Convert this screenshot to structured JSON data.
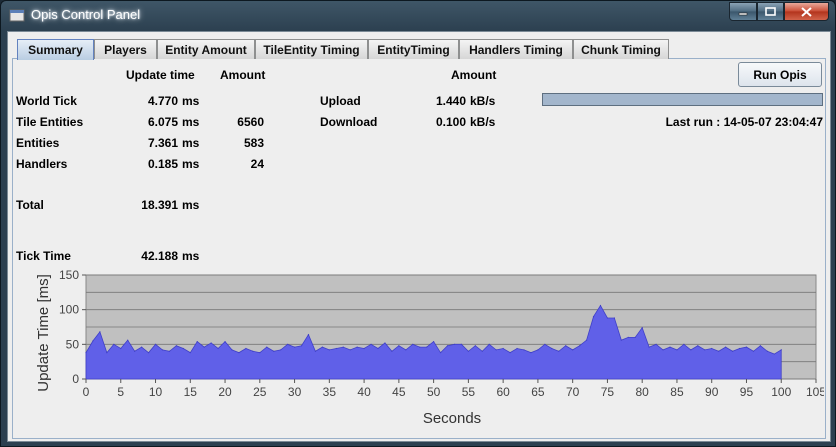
{
  "window": {
    "title": "Opis Control Panel"
  },
  "tabs": [
    {
      "label": "Summary",
      "active": true
    },
    {
      "label": "Players"
    },
    {
      "label": "Entity Amount"
    },
    {
      "label": "TileEntity Timing"
    },
    {
      "label": "EntityTiming"
    },
    {
      "label": "Handlers Timing"
    },
    {
      "label": "Chunk Timing"
    }
  ],
  "summary": {
    "col_update_time": "Update time",
    "col_amount": "Amount",
    "rows": [
      {
        "label": "World Tick",
        "value": "4.770",
        "unit": "ms",
        "amount": ""
      },
      {
        "label": "Tile Entities",
        "value": "6.075",
        "unit": "ms",
        "amount": "6560"
      },
      {
        "label": "Entities",
        "value": "7.361",
        "unit": "ms",
        "amount": "583"
      },
      {
        "label": "Handlers",
        "value": "0.185",
        "unit": "ms",
        "amount": "24"
      }
    ],
    "total": {
      "label": "Total",
      "value": "18.391",
      "unit": "ms"
    },
    "tick": {
      "label": "Tick Time",
      "value": "42.188",
      "unit": "ms"
    }
  },
  "network": {
    "col_amount": "Amount",
    "upload": {
      "label": "Upload",
      "value": "1.440",
      "unit": "kB/s"
    },
    "download": {
      "label": "Download",
      "value": "0.100",
      "unit": "kB/s"
    }
  },
  "run": {
    "button_label": "Run Opis",
    "progress": 1.0,
    "last_run": "Last run : 14-05-07 23:04:47"
  },
  "chart_data": {
    "type": "area",
    "xlabel": "Seconds",
    "ylabel": "Update Time [ms]",
    "xlim": [
      0,
      105
    ],
    "ylim": [
      0,
      150
    ],
    "xticks": [
      0,
      5,
      10,
      15,
      20,
      25,
      30,
      35,
      40,
      45,
      50,
      55,
      60,
      65,
      70,
      75,
      80,
      85,
      90,
      95,
      100,
      105
    ],
    "yticks": [
      0,
      50,
      100,
      150
    ],
    "color": "#6060e8",
    "series": [
      {
        "x": [
          0,
          1,
          2,
          3,
          4,
          5,
          6,
          7,
          8,
          9,
          10,
          11,
          12,
          13,
          14,
          15,
          16,
          17,
          18,
          19,
          20,
          21,
          22,
          23,
          24,
          25,
          26,
          27,
          28,
          29,
          30,
          31,
          32,
          33,
          34,
          35,
          36,
          37,
          38,
          39,
          40,
          41,
          42,
          43,
          44,
          45,
          46,
          47,
          48,
          49,
          50,
          51,
          52,
          53,
          54,
          55,
          56,
          57,
          58,
          59,
          60,
          61,
          62,
          63,
          64,
          65,
          66,
          67,
          68,
          69,
          70,
          71,
          72,
          73,
          74,
          75,
          76,
          77,
          78,
          79,
          80,
          81,
          82,
          83,
          84,
          85,
          86,
          87,
          88,
          89,
          90,
          91,
          92,
          93,
          94,
          95,
          96,
          97,
          98,
          99,
          100
        ],
        "y": [
          38,
          55,
          68,
          38,
          50,
          44,
          56,
          40,
          46,
          38,
          50,
          42,
          40,
          48,
          44,
          38,
          54,
          46,
          52,
          44,
          54,
          42,
          38,
          44,
          40,
          38,
          46,
          40,
          42,
          50,
          46,
          48,
          64,
          40,
          46,
          42,
          44,
          46,
          42,
          46,
          44,
          50,
          44,
          52,
          40,
          48,
          42,
          50,
          46,
          46,
          54,
          38,
          48,
          50,
          50,
          40,
          48,
          40,
          50,
          42,
          44,
          38,
          44,
          42,
          38,
          42,
          50,
          44,
          40,
          48,
          42,
          48,
          56,
          90,
          106,
          88,
          88,
          56,
          60,
          60,
          74,
          46,
          50,
          42,
          46,
          42,
          50,
          42,
          48,
          42,
          44,
          40,
          46,
          40,
          44,
          46,
          40,
          48,
          40,
          36,
          42
        ]
      }
    ]
  }
}
